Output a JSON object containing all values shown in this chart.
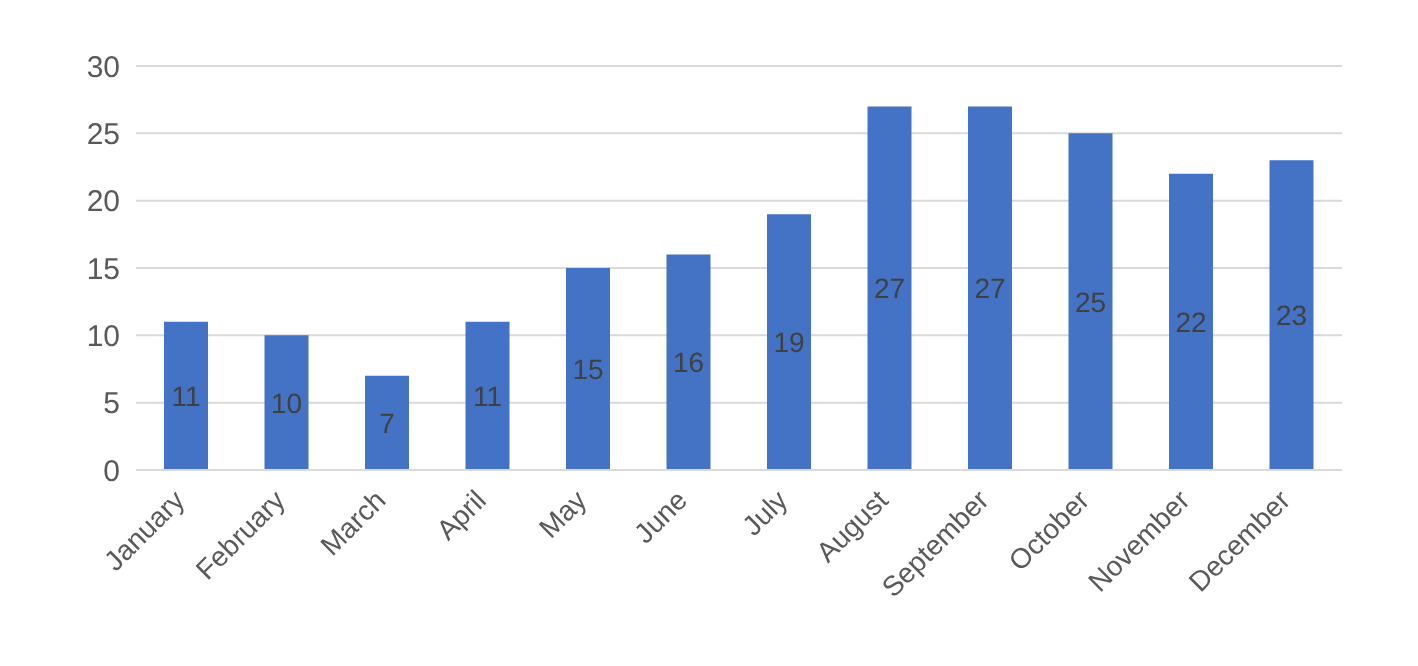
{
  "chart_data": {
    "type": "bar",
    "categories": [
      "January",
      "February",
      "March",
      "April",
      "May",
      "June",
      "July",
      "August",
      "September",
      "October",
      "November",
      "December"
    ],
    "values": [
      11,
      10,
      7,
      11,
      15,
      16,
      19,
      27,
      27,
      25,
      22,
      23
    ],
    "color": "#4472c4",
    "ylim": [
      0,
      30
    ],
    "yticks": [
      0,
      5,
      10,
      15,
      20,
      25,
      30
    ],
    "grid": "y",
    "data_labels": true
  }
}
